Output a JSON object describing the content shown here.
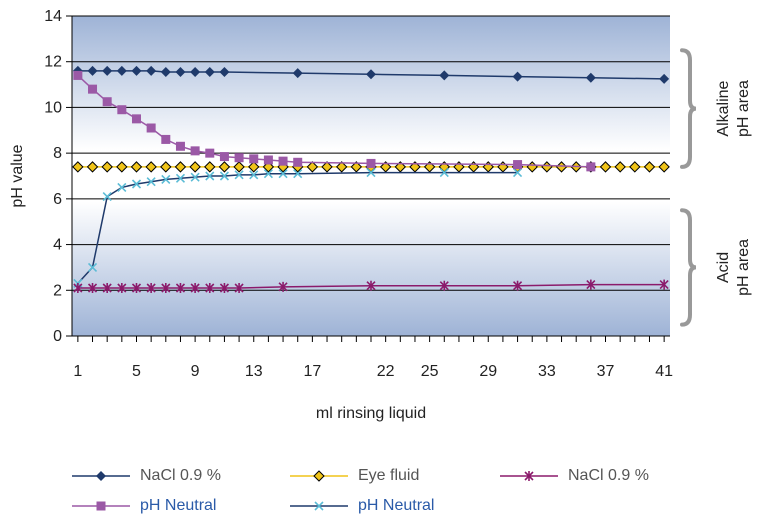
{
  "chart_data": {
    "type": "line",
    "xlabel": "ml rinsing liquid",
    "ylabel": "pH value",
    "x_ticks": [
      1,
      5,
      9,
      13,
      17,
      22,
      25,
      29,
      33,
      37,
      41
    ],
    "y_ticks": [
      0,
      2,
      4,
      6,
      8,
      10,
      12,
      14
    ],
    "ylim": [
      0,
      14
    ],
    "grid": "horizontal",
    "legend_position": "bottom",
    "regions": [
      {
        "label_line1": "Alkaline",
        "label_line2": "pH area",
        "ymin": 7.4,
        "ymax": 12.5
      },
      {
        "label_line1": "Acid",
        "label_line2": "pH area",
        "ymin": 0.5,
        "ymax": 5.5
      }
    ],
    "series": [
      {
        "name": "NaCl 0.9 %",
        "color": "#1f3a6b",
        "line_color": "#1f3a6b",
        "marker": "diamond",
        "points": [
          [
            1,
            11.6
          ],
          [
            2,
            11.6
          ],
          [
            3,
            11.6
          ],
          [
            4,
            11.6
          ],
          [
            5,
            11.6
          ],
          [
            6,
            11.6
          ],
          [
            7,
            11.55
          ],
          [
            8,
            11.55
          ],
          [
            9,
            11.55
          ],
          [
            10,
            11.55
          ],
          [
            11,
            11.55
          ],
          [
            16,
            11.5
          ],
          [
            21,
            11.45
          ],
          [
            26,
            11.4
          ],
          [
            31,
            11.35
          ],
          [
            36,
            11.3
          ],
          [
            41,
            11.25
          ]
        ]
      },
      {
        "name": "pH Neutral",
        "color": "#9b59a6",
        "line_color": "#9b59a6",
        "marker": "square",
        "points": [
          [
            1,
            11.4
          ],
          [
            2,
            10.8
          ],
          [
            3,
            10.25
          ],
          [
            4,
            9.9
          ],
          [
            5,
            9.5
          ],
          [
            6,
            9.1
          ],
          [
            7,
            8.6
          ],
          [
            8,
            8.3
          ],
          [
            9,
            8.1
          ],
          [
            10,
            8.0
          ],
          [
            11,
            7.85
          ],
          [
            12,
            7.8
          ],
          [
            13,
            7.75
          ],
          [
            14,
            7.7
          ],
          [
            15,
            7.65
          ],
          [
            16,
            7.6
          ],
          [
            21,
            7.55
          ],
          [
            31,
            7.5
          ],
          [
            36,
            7.4
          ]
        ]
      },
      {
        "name": "Eye fluid",
        "color": "#f0c419",
        "line_color": "#f0c419",
        "marker": "diamond-outline",
        "points": [
          [
            1,
            7.4
          ],
          [
            2,
            7.4
          ],
          [
            3,
            7.4
          ],
          [
            4,
            7.4
          ],
          [
            5,
            7.4
          ],
          [
            6,
            7.4
          ],
          [
            7,
            7.4
          ],
          [
            8,
            7.4
          ],
          [
            9,
            7.4
          ],
          [
            10,
            7.4
          ],
          [
            11,
            7.4
          ],
          [
            12,
            7.4
          ],
          [
            13,
            7.4
          ],
          [
            14,
            7.4
          ],
          [
            15,
            7.4
          ],
          [
            16,
            7.4
          ],
          [
            17,
            7.4
          ],
          [
            18,
            7.4
          ],
          [
            19,
            7.4
          ],
          [
            20,
            7.4
          ],
          [
            21,
            7.4
          ],
          [
            22,
            7.4
          ],
          [
            23,
            7.4
          ],
          [
            24,
            7.4
          ],
          [
            25,
            7.4
          ],
          [
            26,
            7.4
          ],
          [
            27,
            7.4
          ],
          [
            28,
            7.4
          ],
          [
            29,
            7.4
          ],
          [
            30,
            7.4
          ],
          [
            31,
            7.4
          ],
          [
            32,
            7.4
          ],
          [
            33,
            7.4
          ],
          [
            34,
            7.4
          ],
          [
            35,
            7.4
          ],
          [
            36,
            7.4
          ],
          [
            37,
            7.4
          ],
          [
            38,
            7.4
          ],
          [
            39,
            7.4
          ],
          [
            40,
            7.4
          ],
          [
            41,
            7.4
          ]
        ]
      },
      {
        "name": "pH Neutral",
        "color": "#5bbcd6",
        "line_color": "#1f3a6b",
        "marker": "x",
        "points": [
          [
            1,
            2.3
          ],
          [
            2,
            3.0
          ],
          [
            3,
            6.1
          ],
          [
            4,
            6.5
          ],
          [
            5,
            6.65
          ],
          [
            6,
            6.75
          ],
          [
            7,
            6.85
          ],
          [
            8,
            6.9
          ],
          [
            9,
            6.95
          ],
          [
            10,
            7.0
          ],
          [
            11,
            7.0
          ],
          [
            12,
            7.05
          ],
          [
            13,
            7.05
          ],
          [
            14,
            7.1
          ],
          [
            15,
            7.1
          ],
          [
            16,
            7.1
          ],
          [
            21,
            7.15
          ],
          [
            26,
            7.15
          ],
          [
            31,
            7.15
          ]
        ]
      },
      {
        "name": "NaCl 0.9 %",
        "color": "#8b1a6b",
        "line_color": "#8b1a6b",
        "marker": "star",
        "points": [
          [
            1,
            2.1
          ],
          [
            2,
            2.1
          ],
          [
            3,
            2.1
          ],
          [
            4,
            2.1
          ],
          [
            5,
            2.1
          ],
          [
            6,
            2.1
          ],
          [
            7,
            2.1
          ],
          [
            8,
            2.1
          ],
          [
            9,
            2.1
          ],
          [
            10,
            2.1
          ],
          [
            11,
            2.1
          ],
          [
            12,
            2.1
          ],
          [
            15,
            2.15
          ],
          [
            21,
            2.2
          ],
          [
            26,
            2.2
          ],
          [
            31,
            2.2
          ],
          [
            36,
            2.25
          ],
          [
            41,
            2.25
          ]
        ]
      }
    ]
  },
  "legend": [
    {
      "label": "NaCl 0.9 %",
      "series": 0,
      "label_color": "#555555"
    },
    {
      "label": "Eye fluid",
      "series": 2,
      "label_color": "#555555"
    },
    {
      "label": "NaCl 0.9 %",
      "series": 4,
      "label_color": "#555555"
    },
    {
      "label": "pH Neutral",
      "series": 1,
      "label_color": "#2a5aa8"
    },
    {
      "label": "pH Neutral",
      "series": 3,
      "label_color": "#2a5aa8"
    }
  ]
}
